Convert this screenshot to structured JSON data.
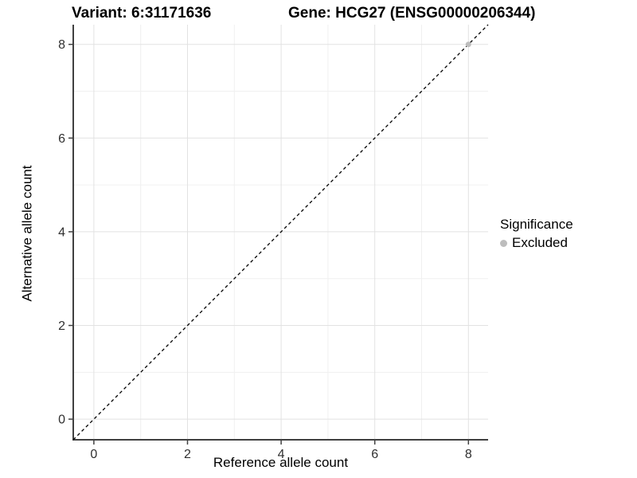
{
  "chart_data": {
    "type": "scatter",
    "title_left": "Variant: 6:31171636",
    "title_right": "Gene: HCG27 (ENSG00000206344)",
    "xlabel": "Reference allele count",
    "ylabel": "Alternative allele count",
    "xlim": [
      -0.44,
      8.42
    ],
    "ylim": [
      -0.44,
      8.42
    ],
    "xticks": [
      0,
      2,
      4,
      6,
      8
    ],
    "yticks": [
      0,
      2,
      4,
      6,
      8
    ],
    "minor_xticks": [
      1,
      3,
      5,
      7
    ],
    "minor_yticks": [
      1,
      3,
      5,
      7
    ],
    "grid": true,
    "identity_line": {
      "style": "dashed",
      "color": "#000000",
      "slope": 1,
      "intercept": 0
    },
    "series": [
      {
        "name": "Excluded",
        "color": "#bdbdbd",
        "points": [
          {
            "x": 8,
            "y": 8
          }
        ]
      }
    ],
    "legend": {
      "title": "Significance",
      "position": "right",
      "items": [
        {
          "label": "Excluded",
          "color": "#bdbdbd"
        }
      ]
    },
    "colors": {
      "major_grid": "#e2e2e2",
      "minor_grid": "#f0f0f0",
      "axis_line": "#404040",
      "tick_label": "#303030",
      "background": "#ffffff"
    }
  }
}
